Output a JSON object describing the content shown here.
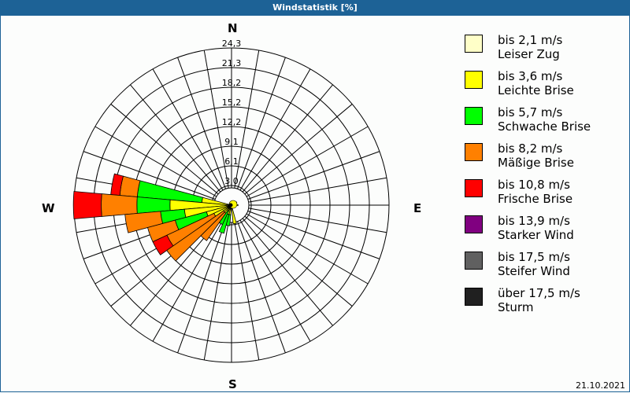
{
  "title": "Windstatistik [%]",
  "date": "21.10.2021",
  "directions": {
    "n": "N",
    "e": "E",
    "s": "S",
    "w": "W"
  },
  "legend": [
    {
      "range": "bis 2,1 m/s",
      "name": "Leiser Zug",
      "color": "#ffffc8"
    },
    {
      "range": "bis 3,6 m/s",
      "name": "Leichte Brise",
      "color": "#ffff00"
    },
    {
      "range": "bis 5,7 m/s",
      "name": "Schwache Brise",
      "color": "#00ff00"
    },
    {
      "range": "bis 8,2 m/s",
      "name": "Mäßige Brise",
      "color": "#ff8000"
    },
    {
      "range": "bis 10,8 m/s",
      "name": "Frische Brise",
      "color": "#ff0000"
    },
    {
      "range": "bis 13,9 m/s",
      "name": "Starker Wind",
      "color": "#800080"
    },
    {
      "range": "bis 17,5 m/s",
      "name": "Steifer Wind",
      "color": "#606060"
    },
    {
      "range": "über 17,5 m/s",
      "name": "Sturm",
      "color": "#202020"
    }
  ],
  "chart_data": {
    "type": "wind-rose",
    "title": "Windstatistik [%]",
    "ring_labels": [
      "3,0",
      "6,1",
      "9,1",
      "12,2",
      "15,2",
      "18,2",
      "21,3",
      "24,3"
    ],
    "rmax": 24.3,
    "sector_width_deg": 10,
    "categories": [
      "bis 2,1 m/s",
      "bis 3,6 m/s",
      "bis 5,7 m/s",
      "bis 8,2 m/s",
      "bis 10,8 m/s",
      "bis 13,9 m/s",
      "bis 17,5 m/s",
      "über 17,5 m/s"
    ],
    "sectors": [
      {
        "dir": 280,
        "cumulative": [
          0.4,
          4.6,
          14.6,
          17.3,
          18.7
        ]
      },
      {
        "dir": 270,
        "cumulative": [
          0.4,
          9.5,
          14.6,
          20.1,
          24.4
        ]
      },
      {
        "dir": 260,
        "cumulative": [
          0.4,
          7.3,
          11.0,
          16.5,
          16.5
        ]
      },
      {
        "dir": 250,
        "cumulative": [
          0.4,
          4.0,
          9.0,
          13.4,
          13.4
        ]
      },
      {
        "dir": 240,
        "cumulative": [
          0.4,
          3.0,
          3.0,
          11.0,
          13.4
        ]
      },
      {
        "dir": 230,
        "cumulative": [
          0.4,
          1.5,
          1.5,
          12.2,
          12.2
        ]
      },
      {
        "dir": 220,
        "cumulative": [
          0.4,
          1.5,
          1.5,
          6.7,
          6.7
        ]
      },
      {
        "dir": 210,
        "cumulative": [
          0.4,
          1.0,
          3.3,
          3.3,
          3.3
        ]
      },
      {
        "dir": 200,
        "cumulative": [
          0.4,
          1.5,
          4.5,
          4.5,
          4.5
        ]
      },
      {
        "dir": 190,
        "cumulative": [
          0.4,
          1.5,
          3.2,
          3.2,
          3.2
        ]
      },
      {
        "dir": 170,
        "cumulative": [
          0.4,
          2.9,
          2.9,
          2.9,
          2.9
        ]
      },
      {
        "dir": 90,
        "cumulative": [
          0.4,
          1.0,
          1.0,
          1.0,
          1.0
        ]
      },
      {
        "dir": 60,
        "cumulative": [
          0.4,
          0.9,
          0.9,
          0.9,
          0.9
        ]
      }
    ],
    "legend_position": "right",
    "grid": true
  }
}
